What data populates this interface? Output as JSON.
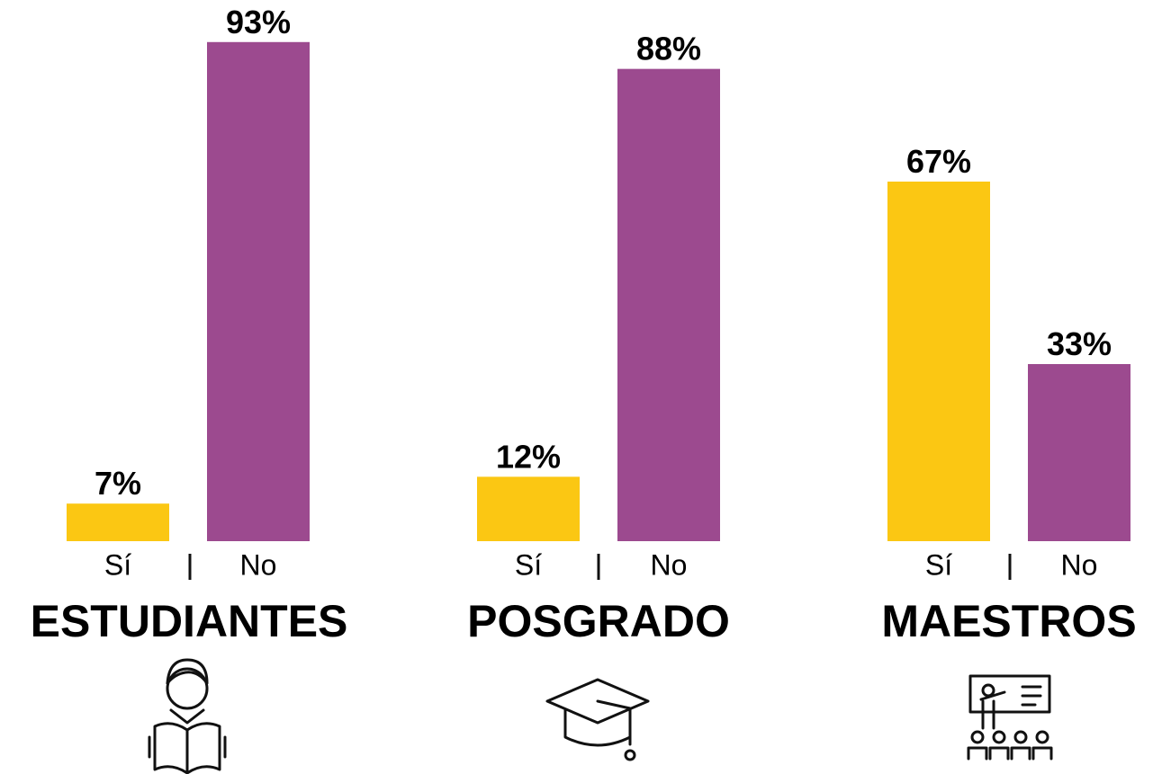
{
  "chart_data": [
    {
      "type": "bar",
      "title": "ESTUDIANTES",
      "categories": [
        "Sí",
        "No"
      ],
      "values": [
        7,
        93
      ],
      "value_labels": [
        "7%",
        "93%"
      ],
      "colors": [
        "#FBC713",
        "#9C4A8F"
      ],
      "ylim": [
        0,
        100
      ]
    },
    {
      "type": "bar",
      "title": "POSGRADO",
      "categories": [
        "Sí",
        "No"
      ],
      "values": [
        12,
        88
      ],
      "value_labels": [
        "12%",
        "88%"
      ],
      "colors": [
        "#FBC713",
        "#9C4A8F"
      ],
      "ylim": [
        0,
        100
      ]
    },
    {
      "type": "bar",
      "title": "MAESTROS",
      "categories": [
        "Sí",
        "No"
      ],
      "values": [
        67,
        33
      ],
      "value_labels": [
        "67%",
        "33%"
      ],
      "colors": [
        "#FBC713",
        "#9C4A8F"
      ],
      "ylim": [
        0,
        100
      ]
    }
  ]
}
